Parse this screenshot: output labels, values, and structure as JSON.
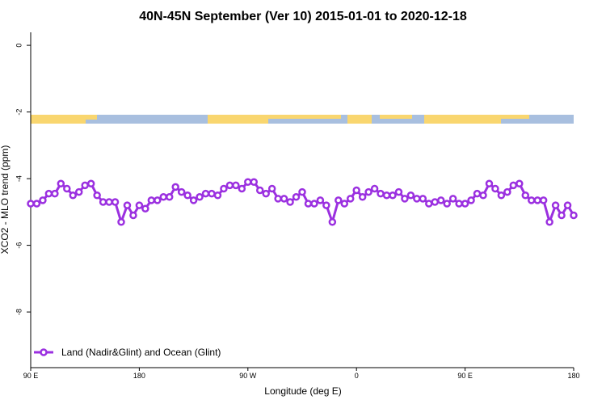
{
  "chart_data": {
    "type": "line",
    "title": "40N-45N September (Ver 10)   2015-01-01 to 2020-12-18",
    "xlabel": "Longitude (deg E)",
    "ylabel": "XCO2 - MLO trend (ppm)",
    "x": [
      90,
      95,
      100,
      105,
      110,
      115,
      120,
      125,
      130,
      135,
      140,
      145,
      150,
      155,
      160,
      165,
      170,
      175,
      180,
      185,
      190,
      195,
      200,
      205,
      210,
      215,
      220,
      225,
      230,
      235,
      240,
      245,
      250,
      255,
      260,
      265,
      270,
      275,
      280,
      285,
      290,
      295,
      300,
      305,
      310,
      315,
      320,
      325,
      330,
      335,
      340,
      345,
      350,
      355,
      360,
      365,
      370,
      375,
      380,
      385,
      390,
      395,
      400,
      405,
      410,
      415,
      420,
      425,
      430,
      435,
      440,
      445,
      450,
      455,
      460,
      465,
      470,
      475,
      480,
      485,
      490,
      495,
      500,
      505,
      510,
      515,
      520,
      525,
      530,
      535,
      540
    ],
    "series": [
      {
        "name": "Land (Nadir&Glint) and Ocean (Glint)",
        "color": "#9b30e0",
        "values": [
          -4.75,
          -4.75,
          -4.65,
          -4.45,
          -4.45,
          -4.15,
          -4.3,
          -4.5,
          -4.4,
          -4.2,
          -4.15,
          -4.5,
          -4.7,
          -4.7,
          -4.7,
          -5.3,
          -4.8,
          -5.1,
          -4.8,
          -4.9,
          -4.65,
          -4.65,
          -4.55,
          -4.55,
          -4.25,
          -4.4,
          -4.5,
          -4.65,
          -4.55,
          -4.45,
          -4.45,
          -4.5,
          -4.3,
          -4.2,
          -4.2,
          -4.3,
          -4.1,
          -4.1,
          -4.35,
          -4.45,
          -4.3,
          -4.6,
          -4.6,
          -4.7,
          -4.55,
          -4.4,
          -4.75,
          -4.75,
          -4.65,
          -4.8,
          -5.3,
          -4.65,
          -4.75,
          -4.6,
          -4.35,
          -4.55,
          -4.4,
          -4.3,
          -4.45,
          -4.5,
          -4.5,
          -4.4,
          -4.6,
          -4.5,
          -4.6,
          -4.6,
          -4.75,
          -4.7,
          -4.65,
          -4.75,
          -4.6,
          -4.75,
          -4.75,
          -4.65,
          -4.45,
          -4.5,
          -4.15,
          -4.3,
          -4.5,
          -4.4,
          -4.2,
          -4.15,
          -4.5,
          -4.65,
          -4.65,
          -4.65,
          -5.3,
          -4.8,
          -5.1,
          -4.8,
          -5.1
        ]
      }
    ],
    "xlim": [
      90,
      540
    ],
    "xticks": [
      {
        "value": 90,
        "label": "90 E"
      },
      180,
      {
        "value": 270,
        "label": "90 W"
      },
      {
        "value": 360,
        "label": "0"
      },
      {
        "value": 450,
        "label": "90 E"
      },
      {
        "value": 540,
        "label": "180"
      }
    ],
    "ylim": [
      -9.67,
      0.39
    ],
    "yticks": [
      0,
      -2,
      -4,
      -6,
      -8
    ],
    "legend": "bottom-left"
  }
}
